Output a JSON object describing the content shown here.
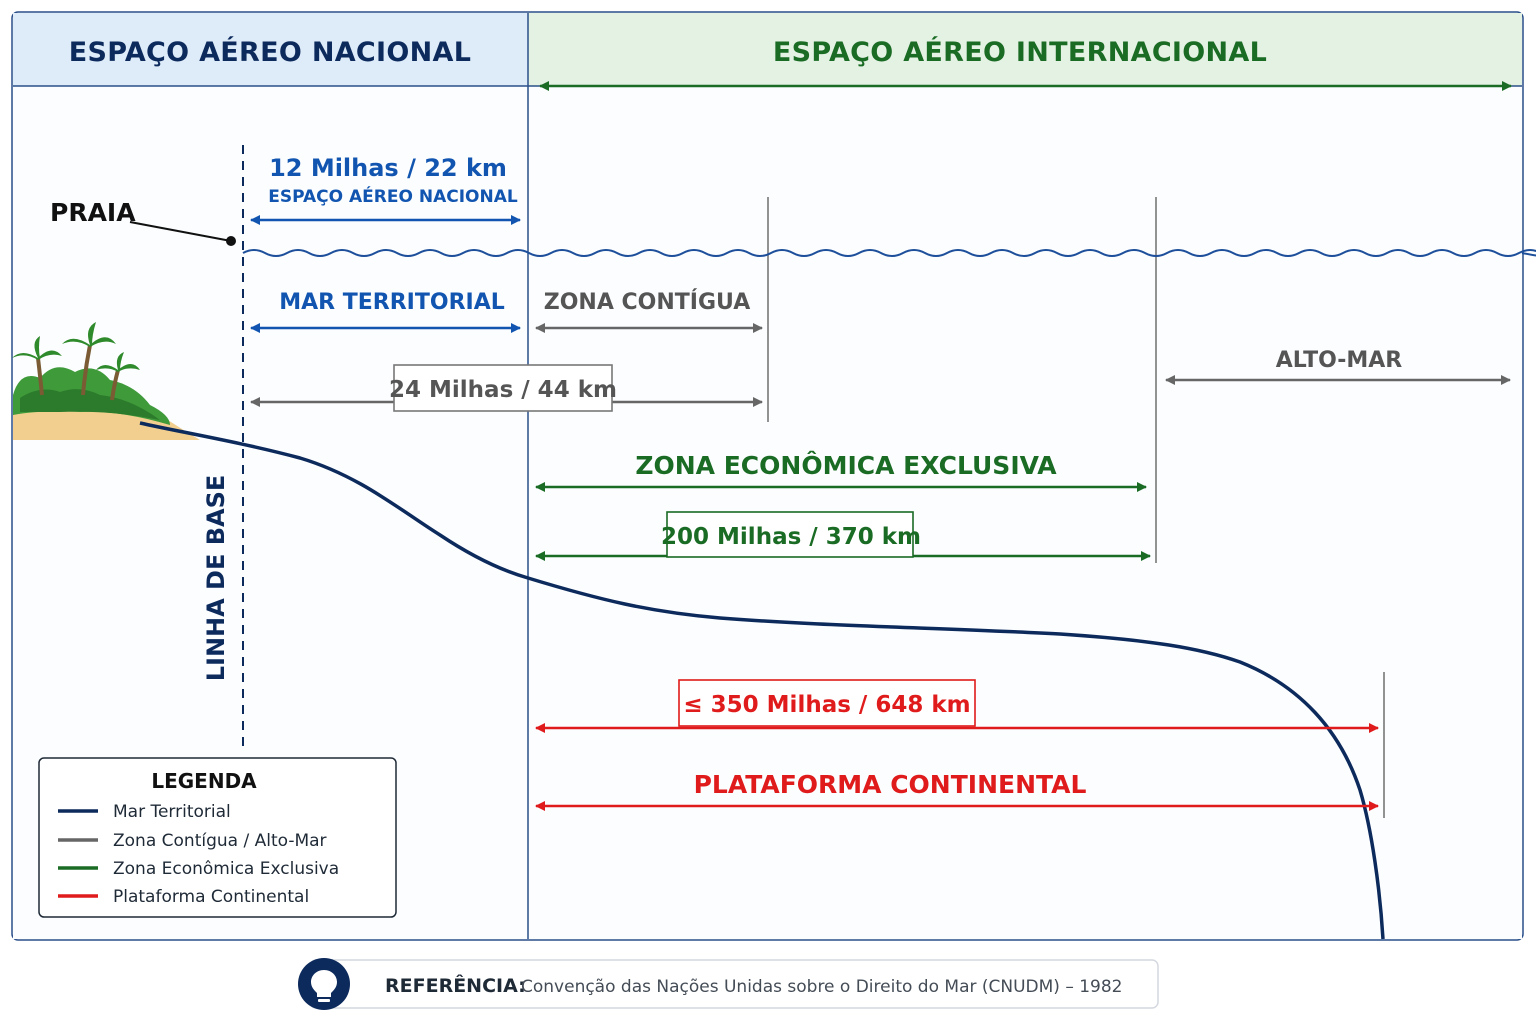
{
  "headers": {
    "national": "ESPAÇO AÉREO NACIONAL",
    "international": "ESPAÇO AÉREO INTERNACIONAL"
  },
  "labels": {
    "praia": "PRAIA",
    "linha_de_base": "LINHA DE BASE",
    "airspace_distance": "12 Milhas / 22 km",
    "airspace_sub": "ESPAÇO AÉREO NACIONAL",
    "mar_territorial": "MAR TERRITORIAL",
    "zona_contigua": "ZONA CONTÍGUA",
    "contigua_distance": "24 Milhas / 44 km",
    "alto_mar": "ALTO-MAR",
    "zee": "ZONA ECONÔMICA EXCLUSIVA",
    "zee_distance": "200 Milhas / 370 km",
    "plataforma_distance": "≤ 350 Milhas / 648 km",
    "plataforma": "PLATAFORMA CONTINENTAL"
  },
  "legend": {
    "title": "LEGENDA",
    "items": [
      {
        "label": "Mar Territorial",
        "color": "#0d2a5c"
      },
      {
        "label": "Zona Contígua / Alto-Mar",
        "color": "#666666"
      },
      {
        "label": "Zona Econômica Exclusiva",
        "color": "#1a6b24"
      },
      {
        "label": "Plataforma Continental",
        "color": "#e01b1b"
      }
    ]
  },
  "reference": {
    "label": "REFERÊNCIA:",
    "text": "Convenção das Nações Unidas sobre o Direito do Mar (CNUDM) – 1982",
    "icon": "lightbulb-icon"
  },
  "colors": {
    "navy": "#0d2a5c",
    "blue": "#1155b0",
    "gray": "#666666",
    "green": "#1a6b24",
    "red": "#e01b1b"
  }
}
